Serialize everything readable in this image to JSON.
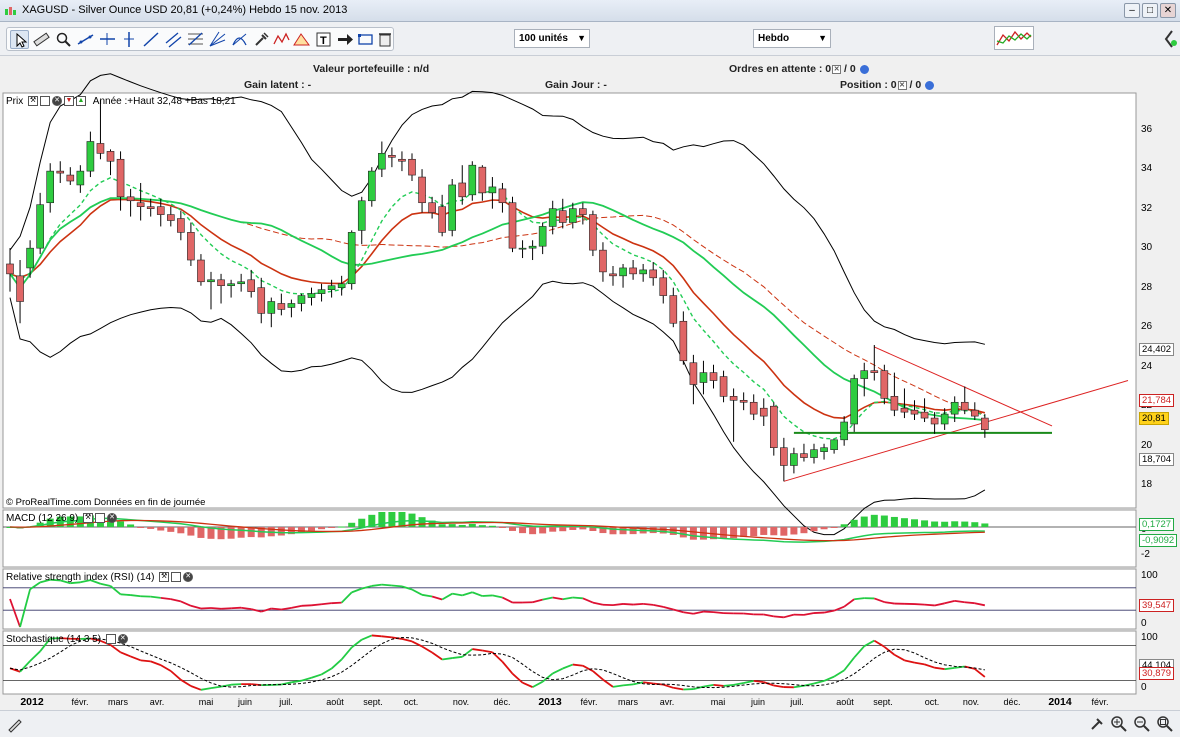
{
  "window": {
    "title": "XAGUSD - Silver Ounce USD   20,81 (+0,24%)   Hebdo  15 nov. 2013",
    "minimize": "–",
    "maximize": "□",
    "close": "✕"
  },
  "toolbar": {
    "quantity": "100 unités",
    "period": "Hebdo"
  },
  "portfolio": {
    "valeur": "Valeur portefeuille : n/d",
    "ordres": "Ordres en attente : 0",
    "ordres_b": "0",
    "gain_latent": "Gain latent : -",
    "gain_jour": "Gain Jour : -",
    "position": "Position : 0",
    "position_b": "0"
  },
  "price_panel": {
    "title": "Prix",
    "annee": "Année :+Haut 32,48 +Bas 18,21",
    "credit": "© ProRealTime.com  Données en fin de journée",
    "y_ticks": [
      "36",
      "34",
      "32",
      "30",
      "28",
      "26",
      "24",
      "22",
      "20",
      "18"
    ],
    "tags": {
      "upper_band": "24,402",
      "ma": "21,784",
      "price": "20,81",
      "lower_band": "18,704"
    }
  },
  "macd_panel": {
    "title": "MACD (12 26 9)",
    "y_ticks": [
      "0",
      "-2"
    ],
    "tags": {
      "hist": "0,1727",
      "line": "-0,9092"
    }
  },
  "rsi_panel": {
    "title": "Relative strength index (RSI) (14)",
    "y_ticks": [
      "100",
      "0"
    ],
    "tags": {
      "rsi": "39,547"
    }
  },
  "stoch_panel": {
    "title": "Stochastique (14 3 5)",
    "y_ticks": [
      "100",
      "0"
    ],
    "tags": {
      "k": "44,104",
      "d": "30,879"
    }
  },
  "x_axis": [
    {
      "label": "2012",
      "year": true
    },
    {
      "label": "févr.",
      "year": false
    },
    {
      "label": "mars",
      "year": false
    },
    {
      "label": "avr.",
      "year": false
    },
    {
      "label": "mai",
      "year": false
    },
    {
      "label": "juin",
      "year": false
    },
    {
      "label": "juil.",
      "year": false
    },
    {
      "label": "août",
      "year": false
    },
    {
      "label": "sept.",
      "year": false
    },
    {
      "label": "oct.",
      "year": false
    },
    {
      "label": "nov.",
      "year": false
    },
    {
      "label": "déc.",
      "year": false
    },
    {
      "label": "2013",
      "year": true
    },
    {
      "label": "févr.",
      "year": false
    },
    {
      "label": "mars",
      "year": false
    },
    {
      "label": "avr.",
      "year": false
    },
    {
      "label": "mai",
      "year": false
    },
    {
      "label": "juin",
      "year": false
    },
    {
      "label": "juil.",
      "year": false
    },
    {
      "label": "août",
      "year": false
    },
    {
      "label": "sept.",
      "year": false
    },
    {
      "label": "oct.",
      "year": false
    },
    {
      "label": "nov.",
      "year": false
    },
    {
      "label": "déc.",
      "year": false
    },
    {
      "label": "2014",
      "year": true
    },
    {
      "label": "févr.",
      "year": false
    }
  ],
  "chart_data": {
    "type": "candlestick",
    "instrument": "XAGUSD - Silver Ounce USD",
    "period": "Hebdo",
    "ylim": [
      17,
      37.5
    ],
    "colors": {
      "up": "#2ecc40",
      "down": "#e06666",
      "ma_fast": "#22cc55",
      "ma_slow": "#cc3311",
      "bands": "#000000",
      "trend": "#dd2222"
    },
    "candles": [
      {
        "o": 29.2,
        "h": 30.0,
        "l": 27.8,
        "c": 28.7
      },
      {
        "o": 28.6,
        "h": 29.4,
        "l": 26.2,
        "c": 27.3
      },
      {
        "o": 29.0,
        "h": 30.4,
        "l": 28.5,
        "c": 30.0
      },
      {
        "o": 30.0,
        "h": 32.8,
        "l": 29.7,
        "c": 32.2
      },
      {
        "o": 32.3,
        "h": 34.3,
        "l": 31.8,
        "c": 33.9
      },
      {
        "o": 33.9,
        "h": 34.4,
        "l": 33.3,
        "c": 33.8
      },
      {
        "o": 33.7,
        "h": 34.1,
        "l": 33.2,
        "c": 33.4
      },
      {
        "o": 33.2,
        "h": 34.2,
        "l": 32.8,
        "c": 33.9
      },
      {
        "o": 33.9,
        "h": 35.9,
        "l": 33.6,
        "c": 35.4
      },
      {
        "o": 35.3,
        "h": 37.5,
        "l": 34.5,
        "c": 34.8
      },
      {
        "o": 34.9,
        "h": 35.0,
        "l": 33.7,
        "c": 34.4
      },
      {
        "o": 34.5,
        "h": 34.9,
        "l": 31.9,
        "c": 32.6
      },
      {
        "o": 32.6,
        "h": 33.0,
        "l": 31.6,
        "c": 32.4
      },
      {
        "o": 32.3,
        "h": 33.3,
        "l": 31.4,
        "c": 32.1
      },
      {
        "o": 32.1,
        "h": 32.5,
        "l": 31.6,
        "c": 32.0
      },
      {
        "o": 32.1,
        "h": 32.5,
        "l": 31.1,
        "c": 31.7
      },
      {
        "o": 31.7,
        "h": 32.1,
        "l": 31.1,
        "c": 31.4
      },
      {
        "o": 31.5,
        "h": 31.9,
        "l": 30.4,
        "c": 30.8
      },
      {
        "o": 30.8,
        "h": 31.3,
        "l": 29.1,
        "c": 29.4
      },
      {
        "o": 29.4,
        "h": 29.7,
        "l": 28.1,
        "c": 28.3
      },
      {
        "o": 28.3,
        "h": 28.8,
        "l": 26.9,
        "c": 28.4
      },
      {
        "o": 28.4,
        "h": 28.7,
        "l": 27.2,
        "c": 28.1
      },
      {
        "o": 28.1,
        "h": 28.4,
        "l": 27.5,
        "c": 28.2
      },
      {
        "o": 28.2,
        "h": 28.7,
        "l": 27.8,
        "c": 28.3
      },
      {
        "o": 28.4,
        "h": 28.9,
        "l": 27.5,
        "c": 27.8
      },
      {
        "o": 28.0,
        "h": 28.5,
        "l": 26.2,
        "c": 26.7
      },
      {
        "o": 26.7,
        "h": 27.5,
        "l": 26.0,
        "c": 27.3
      },
      {
        "o": 27.2,
        "h": 27.7,
        "l": 26.6,
        "c": 26.9
      },
      {
        "o": 27.0,
        "h": 27.4,
        "l": 26.5,
        "c": 27.2
      },
      {
        "o": 27.2,
        "h": 27.7,
        "l": 26.8,
        "c": 27.6
      },
      {
        "o": 27.5,
        "h": 28.0,
        "l": 27.1,
        "c": 27.7
      },
      {
        "o": 27.7,
        "h": 28.2,
        "l": 27.3,
        "c": 27.9
      },
      {
        "o": 27.9,
        "h": 28.4,
        "l": 27.5,
        "c": 28.1
      },
      {
        "o": 28.0,
        "h": 28.6,
        "l": 27.6,
        "c": 28.2
      },
      {
        "o": 28.2,
        "h": 30.9,
        "l": 27.9,
        "c": 30.8
      },
      {
        "o": 30.9,
        "h": 32.6,
        "l": 30.2,
        "c": 32.4
      },
      {
        "o": 32.4,
        "h": 34.1,
        "l": 32.1,
        "c": 33.9
      },
      {
        "o": 34.0,
        "h": 35.4,
        "l": 33.6,
        "c": 34.8
      },
      {
        "o": 34.7,
        "h": 35.1,
        "l": 34.1,
        "c": 34.6
      },
      {
        "o": 34.5,
        "h": 34.9,
        "l": 33.9,
        "c": 34.4
      },
      {
        "o": 34.5,
        "h": 34.8,
        "l": 33.4,
        "c": 33.7
      },
      {
        "o": 33.6,
        "h": 34.0,
        "l": 31.8,
        "c": 32.3
      },
      {
        "o": 32.3,
        "h": 32.6,
        "l": 31.5,
        "c": 31.8
      },
      {
        "o": 32.1,
        "h": 32.7,
        "l": 30.6,
        "c": 30.8
      },
      {
        "o": 30.9,
        "h": 33.5,
        "l": 30.6,
        "c": 33.2
      },
      {
        "o": 33.3,
        "h": 34.2,
        "l": 32.2,
        "c": 32.6
      },
      {
        "o": 32.7,
        "h": 34.4,
        "l": 32.4,
        "c": 34.2
      },
      {
        "o": 34.1,
        "h": 34.2,
        "l": 32.4,
        "c": 32.8
      },
      {
        "o": 32.8,
        "h": 33.6,
        "l": 32.0,
        "c": 33.1
      },
      {
        "o": 33.0,
        "h": 33.3,
        "l": 31.8,
        "c": 32.3
      },
      {
        "o": 32.3,
        "h": 32.6,
        "l": 29.8,
        "c": 30.0
      },
      {
        "o": 30.0,
        "h": 30.4,
        "l": 29.5,
        "c": 30.0
      },
      {
        "o": 30.0,
        "h": 30.4,
        "l": 29.4,
        "c": 30.1
      },
      {
        "o": 30.1,
        "h": 31.3,
        "l": 29.7,
        "c": 31.1
      },
      {
        "o": 31.1,
        "h": 32.4,
        "l": 30.7,
        "c": 32.0
      },
      {
        "o": 31.9,
        "h": 32.5,
        "l": 31.0,
        "c": 31.3
      },
      {
        "o": 31.3,
        "h": 32.3,
        "l": 31.0,
        "c": 32.0
      },
      {
        "o": 32.0,
        "h": 32.3,
        "l": 31.2,
        "c": 31.7
      },
      {
        "o": 31.7,
        "h": 31.9,
        "l": 29.6,
        "c": 29.9
      },
      {
        "o": 29.9,
        "h": 30.3,
        "l": 28.3,
        "c": 28.8
      },
      {
        "o": 28.7,
        "h": 29.1,
        "l": 28.1,
        "c": 28.6
      },
      {
        "o": 28.6,
        "h": 29.2,
        "l": 28.0,
        "c": 29.0
      },
      {
        "o": 29.0,
        "h": 29.4,
        "l": 28.4,
        "c": 28.7
      },
      {
        "o": 28.7,
        "h": 29.2,
        "l": 28.3,
        "c": 28.9
      },
      {
        "o": 28.9,
        "h": 29.3,
        "l": 28.1,
        "c": 28.5
      },
      {
        "o": 28.5,
        "h": 28.9,
        "l": 27.2,
        "c": 27.6
      },
      {
        "o": 27.6,
        "h": 28.0,
        "l": 26.0,
        "c": 26.2
      },
      {
        "o": 26.3,
        "h": 26.8,
        "l": 24.1,
        "c": 24.3
      },
      {
        "o": 24.2,
        "h": 24.6,
        "l": 22.1,
        "c": 23.1
      },
      {
        "o": 23.2,
        "h": 24.3,
        "l": 22.6,
        "c": 23.7
      },
      {
        "o": 23.7,
        "h": 24.1,
        "l": 22.9,
        "c": 23.3
      },
      {
        "o": 23.5,
        "h": 23.8,
        "l": 22.2,
        "c": 22.5
      },
      {
        "o": 22.5,
        "h": 22.9,
        "l": 20.2,
        "c": 22.3
      },
      {
        "o": 22.3,
        "h": 22.7,
        "l": 21.8,
        "c": 22.2
      },
      {
        "o": 22.2,
        "h": 22.6,
        "l": 21.3,
        "c": 21.6
      },
      {
        "o": 21.9,
        "h": 22.4,
        "l": 21.0,
        "c": 21.5
      },
      {
        "o": 22.0,
        "h": 22.2,
        "l": 19.5,
        "c": 19.9
      },
      {
        "o": 19.9,
        "h": 20.4,
        "l": 18.2,
        "c": 19.0
      },
      {
        "o": 19.0,
        "h": 19.9,
        "l": 18.6,
        "c": 19.6
      },
      {
        "o": 19.6,
        "h": 20.1,
        "l": 19.2,
        "c": 19.4
      },
      {
        "o": 19.4,
        "h": 20.1,
        "l": 19.1,
        "c": 19.8
      },
      {
        "o": 19.7,
        "h": 20.1,
        "l": 19.3,
        "c": 19.9
      },
      {
        "o": 19.8,
        "h": 20.3,
        "l": 19.6,
        "c": 20.3
      },
      {
        "o": 20.3,
        "h": 21.5,
        "l": 20.0,
        "c": 21.2
      },
      {
        "o": 21.1,
        "h": 23.6,
        "l": 20.7,
        "c": 23.4
      },
      {
        "o": 23.4,
        "h": 24.2,
        "l": 22.5,
        "c": 23.8
      },
      {
        "o": 23.8,
        "h": 25.1,
        "l": 23.3,
        "c": 23.7
      },
      {
        "o": 23.8,
        "h": 24.1,
        "l": 22.1,
        "c": 22.4
      },
      {
        "o": 22.5,
        "h": 23.7,
        "l": 21.5,
        "c": 21.8
      },
      {
        "o": 21.9,
        "h": 22.9,
        "l": 21.4,
        "c": 21.7
      },
      {
        "o": 21.8,
        "h": 22.3,
        "l": 21.3,
        "c": 21.6
      },
      {
        "o": 21.7,
        "h": 22.4,
        "l": 21.2,
        "c": 21.4
      },
      {
        "o": 21.4,
        "h": 21.7,
        "l": 20.6,
        "c": 21.1
      },
      {
        "o": 21.1,
        "h": 21.9,
        "l": 20.8,
        "c": 21.6
      },
      {
        "o": 21.6,
        "h": 22.5,
        "l": 21.2,
        "c": 22.2
      },
      {
        "o": 22.2,
        "h": 23.0,
        "l": 21.6,
        "c": 21.8
      },
      {
        "o": 21.8,
        "h": 22.2,
        "l": 21.3,
        "c": 21.5
      },
      {
        "o": 21.4,
        "h": 21.6,
        "l": 20.4,
        "c": 20.81
      }
    ]
  }
}
